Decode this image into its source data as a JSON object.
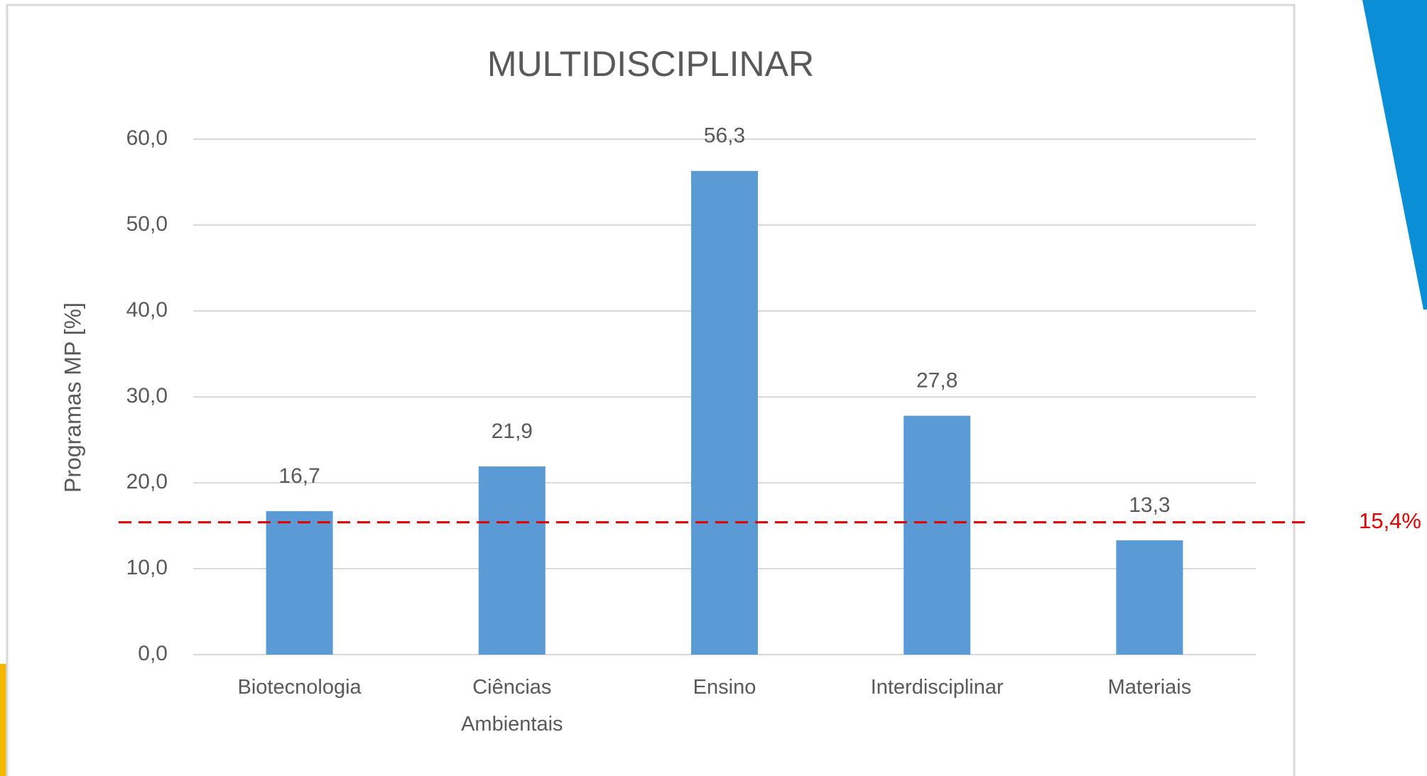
{
  "chart_data": {
    "type": "bar",
    "title": "MULTIDISCIPLINAR",
    "ylabel": "Programas MP [%]",
    "categories": [
      "Biotecnologia",
      "Ciências Ambientais",
      "Ensino",
      "Interdisciplinar",
      "Materiais"
    ],
    "values": [
      16.7,
      21.9,
      56.3,
      27.8,
      13.3
    ],
    "value_labels": [
      "16,7",
      "21,9",
      "56,3",
      "27,8",
      "13,3"
    ],
    "color": "#5b9bd5",
    "ylim": [
      0,
      60
    ],
    "yticks": [
      {
        "value": 0,
        "label": "0,0"
      },
      {
        "value": 10,
        "label": "10,0"
      },
      {
        "value": 20,
        "label": "20,0"
      },
      {
        "value": 30,
        "label": "30,0"
      },
      {
        "value": 40,
        "label": "40,0"
      },
      {
        "value": 50,
        "label": "50,0"
      },
      {
        "value": 60,
        "label": "60,0"
      }
    ],
    "grid": true,
    "reference_line": {
      "value": 15.4,
      "label": "15,4%",
      "color": "#e00000"
    }
  }
}
